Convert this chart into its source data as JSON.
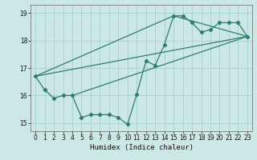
{
  "xlabel": "Humidex (Indice chaleur)",
  "xlim": [
    -0.5,
    23.5
  ],
  "ylim": [
    14.7,
    19.3
  ],
  "yticks": [
    15,
    16,
    17,
    18,
    19
  ],
  "xticks": [
    0,
    1,
    2,
    3,
    4,
    5,
    6,
    7,
    8,
    9,
    10,
    11,
    12,
    13,
    14,
    15,
    16,
    17,
    18,
    19,
    20,
    21,
    22,
    23
  ],
  "bg_color": "#cce8e4",
  "grid_color": "#a8d4d0",
  "line_color": "#2d7d74",
  "line1_x": [
    0,
    1,
    2,
    3,
    4,
    5,
    6,
    7,
    8,
    9,
    10,
    11,
    12,
    13,
    14,
    15,
    16,
    17,
    18,
    19,
    20,
    21,
    22,
    23
  ],
  "line1_y": [
    16.7,
    16.2,
    15.9,
    16.0,
    16.0,
    15.2,
    15.3,
    15.3,
    15.3,
    15.2,
    14.95,
    16.05,
    17.25,
    17.1,
    17.85,
    18.9,
    18.9,
    18.65,
    18.3,
    18.4,
    18.65,
    18.65,
    18.65,
    18.15
  ],
  "line2_x": [
    0,
    23
  ],
  "line2_y": [
    16.7,
    18.15
  ],
  "line3_x": [
    0,
    15,
    23
  ],
  "line3_y": [
    16.7,
    18.9,
    18.15
  ],
  "line4_x": [
    4,
    23
  ],
  "line4_y": [
    16.0,
    18.15
  ]
}
